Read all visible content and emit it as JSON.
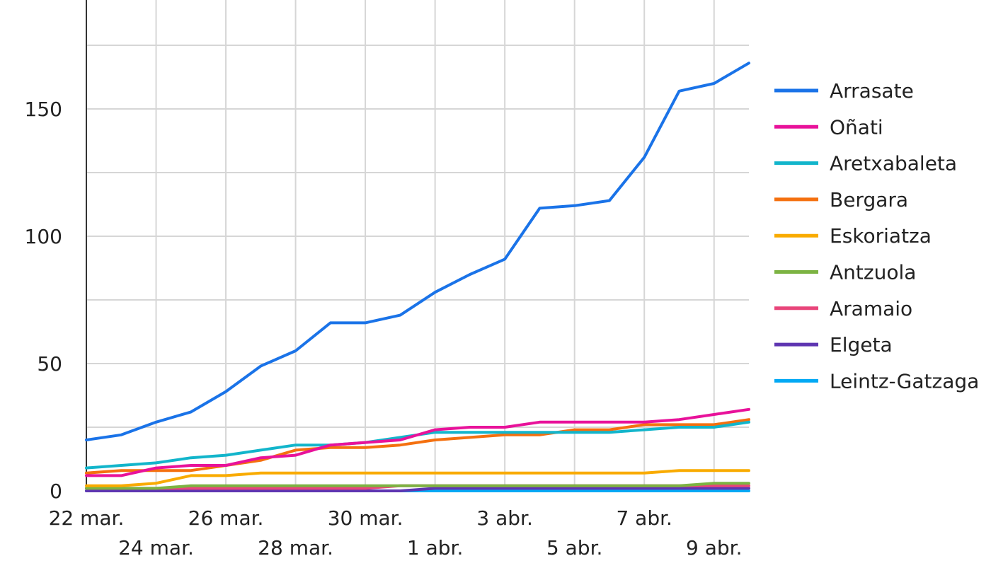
{
  "chart_data": {
    "type": "line",
    "title": "",
    "xlabel": "",
    "ylabel": "",
    "x": [
      "22 mar.",
      "23 mar.",
      "24 mar.",
      "25 mar.",
      "26 mar.",
      "27 mar.",
      "28 mar.",
      "29 mar.",
      "30 mar.",
      "31 mar.",
      "1 abr.",
      "2 abr.",
      "3 abr.",
      "4 abr.",
      "5 abr.",
      "6 abr.",
      "7 abr.",
      "8 abr.",
      "9 abr.",
      "10 abr."
    ],
    "x_ticks_row1": [
      "22 mar.",
      "26 mar.",
      "30 mar.",
      "3 abr.",
      "7 abr."
    ],
    "x_ticks_row2": [
      "24 mar.",
      "28 mar.",
      "1 abr.",
      "5 abr.",
      "9 abr."
    ],
    "ylim": [
      0,
      180
    ],
    "y_ticks": [
      0,
      50,
      100,
      150
    ],
    "y_gridlines": [
      25,
      75,
      125,
      175
    ],
    "grid": true,
    "legend_position": "right",
    "series": [
      {
        "name": "Arrasate",
        "color": "#1a73e8",
        "values": [
          20,
          22,
          27,
          31,
          39,
          49,
          55,
          66,
          66,
          69,
          78,
          85,
          91,
          111,
          112,
          114,
          131,
          157,
          160,
          168
        ]
      },
      {
        "name": "Oñati",
        "color": "#e8129a",
        "values": [
          6,
          6,
          9,
          10,
          10,
          13,
          14,
          18,
          19,
          20,
          24,
          25,
          25,
          27,
          27,
          27,
          27,
          28,
          30,
          32
        ]
      },
      {
        "name": "Aretxabaleta",
        "color": "#12b5cb",
        "values": [
          9,
          10,
          11,
          13,
          14,
          16,
          18,
          18,
          19,
          21,
          23,
          23,
          23,
          23,
          23,
          23,
          24,
          25,
          25,
          27
        ]
      },
      {
        "name": "Bergara",
        "color": "#f4700f",
        "values": [
          7,
          8,
          8,
          8,
          10,
          12,
          16,
          17,
          17,
          18,
          20,
          21,
          22,
          22,
          24,
          24,
          26,
          26,
          26,
          28
        ]
      },
      {
        "name": "Eskoriatza",
        "color": "#f9ab00",
        "values": [
          2,
          2,
          3,
          6,
          6,
          7,
          7,
          7,
          7,
          7,
          7,
          7,
          7,
          7,
          7,
          7,
          7,
          8,
          8,
          8
        ]
      },
      {
        "name": "Antzuola",
        "color": "#7cb342",
        "values": [
          1,
          1,
          1,
          2,
          2,
          2,
          2,
          2,
          2,
          2,
          2,
          2,
          2,
          2,
          2,
          2,
          2,
          2,
          3,
          3
        ]
      },
      {
        "name": "Aramaio",
        "color": "#e8457a",
        "values": [
          1,
          1,
          1,
          1,
          1,
          1,
          1,
          1,
          1,
          2,
          2,
          2,
          2,
          2,
          2,
          2,
          2,
          2,
          2,
          2
        ]
      },
      {
        "name": "Elgeta",
        "color": "#5e35b1",
        "values": [
          0,
          0,
          0,
          0,
          0,
          0,
          0,
          0,
          0,
          0,
          1,
          1,
          1,
          1,
          1,
          1,
          1,
          1,
          1,
          1
        ]
      },
      {
        "name": "Leintz-Gatzaga",
        "color": "#03a9f4",
        "values": [
          0,
          0,
          0,
          0,
          0,
          0,
          0,
          0,
          0,
          0,
          0,
          0,
          0,
          0,
          0,
          0,
          0,
          0,
          0,
          0
        ]
      }
    ]
  }
}
